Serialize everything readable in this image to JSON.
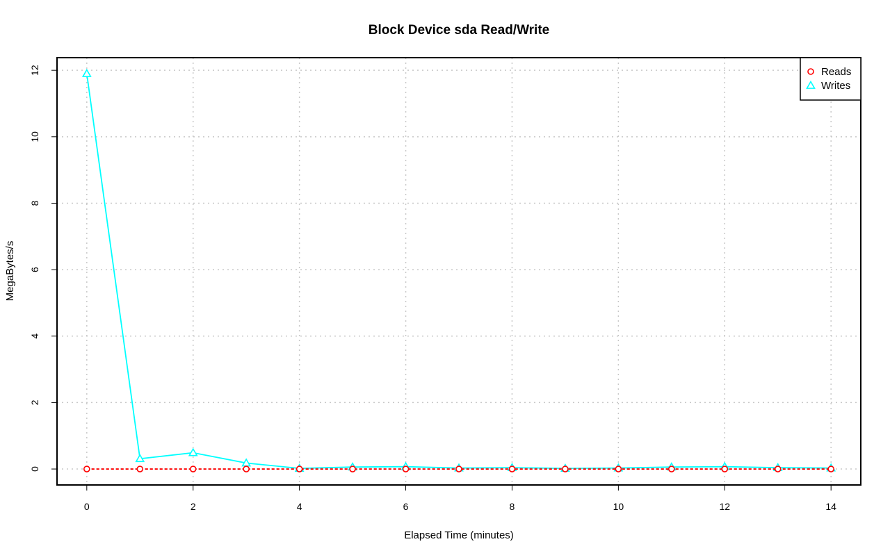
{
  "chart_data": {
    "type": "line",
    "title": "Block Device sda Read/Write",
    "xlabel": "Elapsed Time (minutes)",
    "ylabel": "MegaBytes/s",
    "xlim": [
      -0.56,
      14.56
    ],
    "ylim": [
      -0.48,
      12.38
    ],
    "x_ticks": [
      0,
      2,
      4,
      6,
      8,
      10,
      12,
      14
    ],
    "y_ticks": [
      0,
      2,
      4,
      6,
      8,
      10,
      12
    ],
    "grid": true,
    "legend_position": "top-right",
    "x": [
      0,
      1,
      2,
      3,
      4,
      5,
      6,
      7,
      8,
      9,
      10,
      11,
      12,
      13,
      14
    ],
    "series": [
      {
        "name": "Reads",
        "color": "#ff0000",
        "marker": "circle",
        "line_style": "dashed",
        "values": [
          0,
          0,
          0,
          0,
          0,
          0,
          0,
          0,
          0,
          0,
          0,
          0,
          0,
          0,
          0
        ]
      },
      {
        "name": "Writes",
        "color": "#00ffff",
        "marker": "triangle",
        "line_style": "solid",
        "values": [
          11.9,
          0.31,
          0.49,
          0.18,
          0.02,
          0.06,
          0.07,
          0.03,
          0.04,
          0.02,
          0.03,
          0.06,
          0.07,
          0.04,
          0.03
        ]
      }
    ]
  }
}
